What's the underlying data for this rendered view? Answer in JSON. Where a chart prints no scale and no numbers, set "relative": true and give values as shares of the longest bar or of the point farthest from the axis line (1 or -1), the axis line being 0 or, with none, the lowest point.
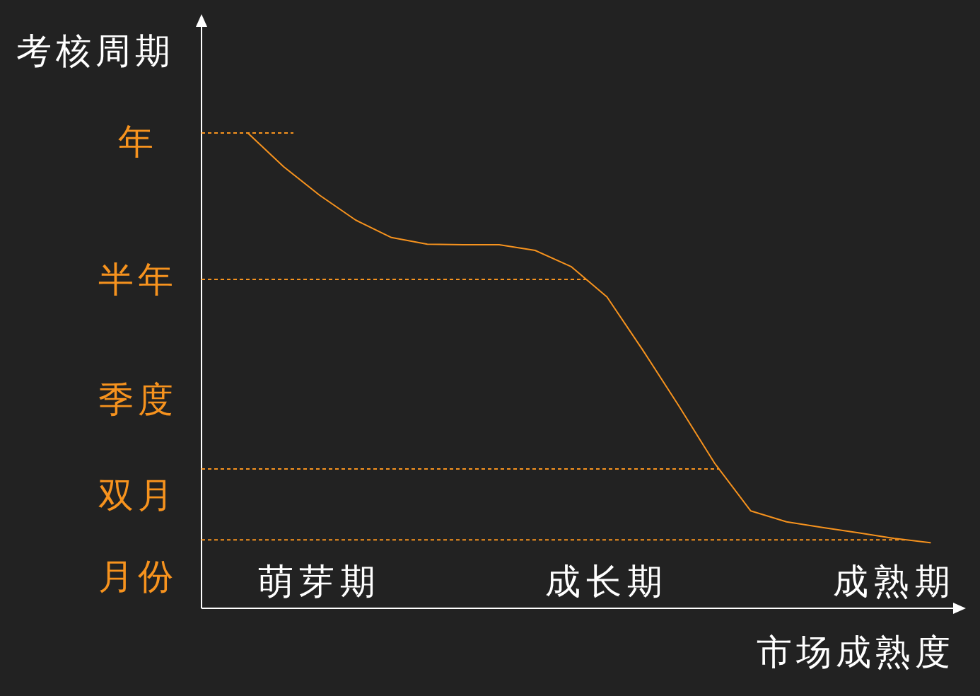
{
  "chart_data": {
    "type": "line",
    "xlabel": "市场成熟度",
    "ylabel": "考核周期",
    "color": "#f7931e",
    "relative": true,
    "annotations": [
      "年",
      "半年",
      "季度",
      "双月",
      "月份"
    ],
    "categories": [
      null,
      null,
      "萌芽期",
      null,
      null,
      null,
      null,
      null,
      null,
      null,
      "成长期",
      null,
      null,
      null,
      null,
      null,
      null,
      null,
      "成熟期",
      null
    ],
    "values": [
      1.0,
      0.929,
      0.869,
      0.817,
      0.78,
      0.766,
      0.765,
      0.765,
      0.753,
      0.719,
      0.655,
      0.543,
      0.426,
      0.305,
      0.205,
      0.182,
      0.17,
      0.159,
      0.147,
      0.138
    ],
    "ref_lines": [
      {
        "axis": "y",
        "value": 0.144,
        "color": "#f7931e",
        "line_style": "dashed"
      },
      {
        "axis": "y",
        "value": 0.293,
        "color": "#f7931e",
        "line_style": "dashed"
      },
      {
        "axis": "y",
        "value": 0.692,
        "color": "#f7931e",
        "line_style": "dashed"
      },
      {
        "axis": "y",
        "value": 1.0,
        "color": "#f7931e",
        "line_style": "dashed"
      }
    ]
  }
}
